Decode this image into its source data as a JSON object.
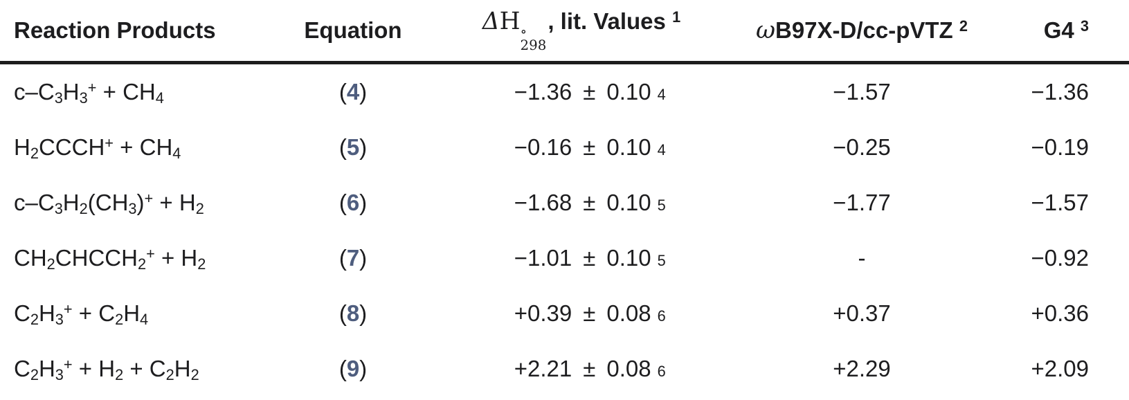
{
  "page": {
    "background_color": "#ffffff",
    "text_color": "#1d1d1f",
    "equation_link_color": "#4e5d7e",
    "rule_color": "#1c1c1c"
  },
  "table": {
    "headers": {
      "products": "Reaction Products",
      "equation": "Equation",
      "lit": [
        {
          "t": "Δ",
          "cls": "mi"
        },
        {
          "t": "H",
          "cls": "mr"
        },
        {
          "stack": {
            "sup": "∘",
            "sub": "298"
          }
        },
        {
          "t": ", lit. Values",
          "cls": "b"
        },
        {
          "t": " "
        },
        {
          "sup": "1",
          "cls": "b"
        }
      ],
      "dft": [
        {
          "t": "ω",
          "cls": "mi"
        },
        {
          "t": "B97X-D/cc-pVTZ",
          "cls": "b"
        },
        {
          "t": " "
        },
        {
          "sup": "2",
          "cls": "b"
        }
      ],
      "g4": [
        {
          "t": "G4",
          "cls": "b"
        },
        {
          "t": " "
        },
        {
          "sup": "3",
          "cls": "b"
        }
      ]
    },
    "rows": [
      {
        "products": [
          {
            "t": "c–C"
          },
          {
            "sub": "3"
          },
          {
            "t": "H"
          },
          {
            "sub": "3"
          },
          {
            "sup": "+"
          },
          {
            "t": " + CH"
          },
          {
            "sub": "4"
          }
        ],
        "equation": "4",
        "lit": {
          "value": "−1.36",
          "pm": "±",
          "uncertainty": "0.10",
          "ref": "4"
        },
        "dft": "−1.57",
        "g4": "−1.36"
      },
      {
        "products": [
          {
            "t": "H"
          },
          {
            "sub": "2"
          },
          {
            "t": "CCCH"
          },
          {
            "sup": "+"
          },
          {
            "t": " + CH"
          },
          {
            "sub": "4"
          }
        ],
        "equation": "5",
        "lit": {
          "value": "−0.16",
          "pm": "±",
          "uncertainty": "0.10",
          "ref": "4"
        },
        "dft": "−0.25",
        "g4": "−0.19"
      },
      {
        "products": [
          {
            "t": "c–C"
          },
          {
            "sub": "3"
          },
          {
            "t": "H"
          },
          {
            "sub": "2"
          },
          {
            "t": "(CH"
          },
          {
            "sub": "3"
          },
          {
            "t": ")"
          },
          {
            "sup": "+"
          },
          {
            "t": " + H"
          },
          {
            "sub": "2"
          }
        ],
        "equation": "6",
        "lit": {
          "value": "−1.68",
          "pm": "±",
          "uncertainty": "0.10",
          "ref": "5"
        },
        "dft": "−1.77",
        "g4": "−1.57"
      },
      {
        "products": [
          {
            "t": "CH"
          },
          {
            "sub": "2"
          },
          {
            "t": "CHCCH"
          },
          {
            "sub": "2"
          },
          {
            "sup": "+"
          },
          {
            "t": " + H"
          },
          {
            "sub": "2"
          }
        ],
        "equation": "7",
        "lit": {
          "value": "−1.01",
          "pm": "±",
          "uncertainty": "0.10",
          "ref": "5"
        },
        "dft": "-",
        "g4": "−0.92"
      },
      {
        "products": [
          {
            "t": "C"
          },
          {
            "sub": "2"
          },
          {
            "t": "H"
          },
          {
            "sub": "3"
          },
          {
            "sup": "+"
          },
          {
            "t": " + C"
          },
          {
            "sub": "2"
          },
          {
            "t": "H"
          },
          {
            "sub": "4"
          }
        ],
        "equation": "8",
        "lit": {
          "value": "+0.39",
          "pm": "±",
          "uncertainty": "0.08",
          "ref": "6"
        },
        "dft": "+0.37",
        "g4": "+0.36"
      },
      {
        "products": [
          {
            "t": "C"
          },
          {
            "sub": "2"
          },
          {
            "t": "H"
          },
          {
            "sub": "3"
          },
          {
            "sup": "+"
          },
          {
            "t": " + H"
          },
          {
            "sub": "2"
          },
          {
            "t": " + C"
          },
          {
            "sub": "2"
          },
          {
            "t": "H"
          },
          {
            "sub": "2"
          }
        ],
        "equation": "9",
        "lit": {
          "value": "+2.21",
          "pm": "±",
          "uncertainty": "0.08",
          "ref": "6"
        },
        "dft": "+2.29",
        "g4": "+2.09"
      }
    ]
  }
}
